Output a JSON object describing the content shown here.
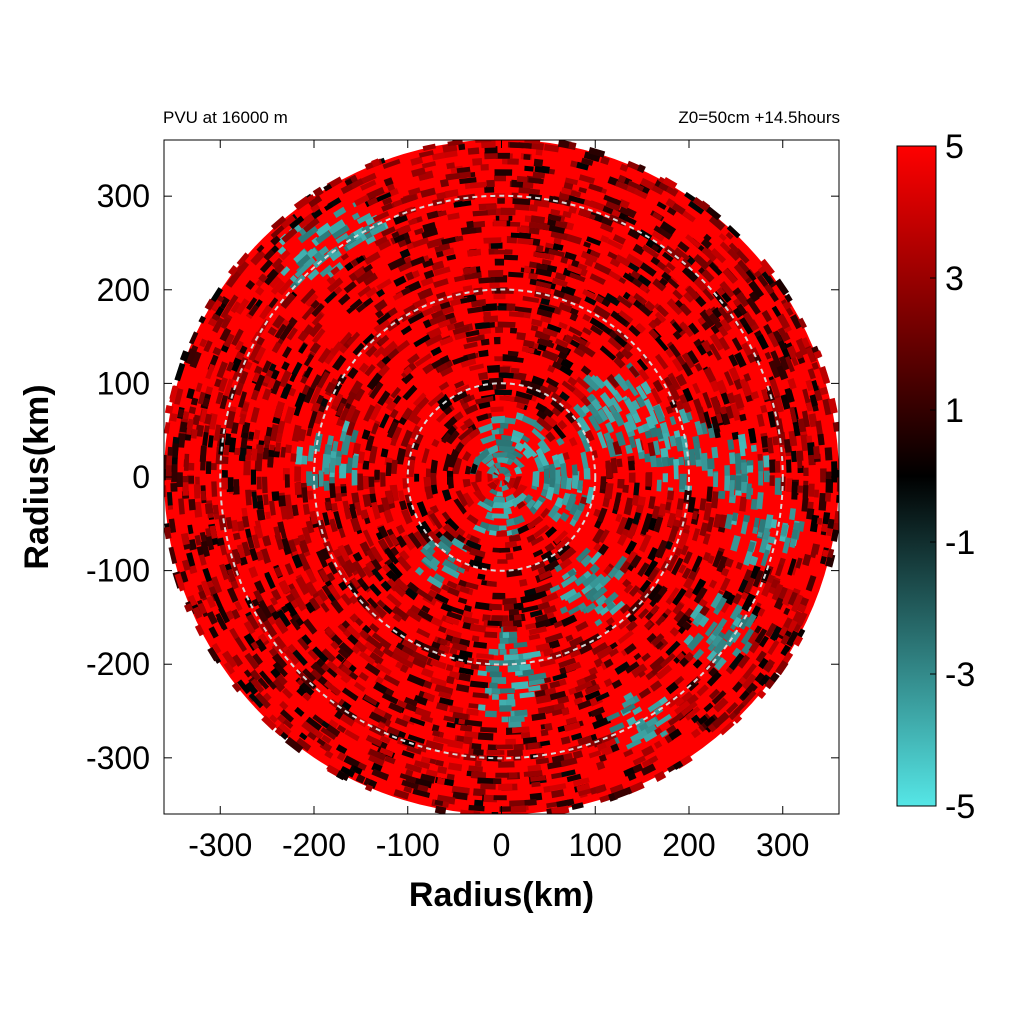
{
  "chart_data": {
    "type": "heatmap",
    "title_left": "PVU at 16000 m",
    "title_right": "Z0=50cm  +14.5hours",
    "xlabel": "Radius(km)",
    "ylabel": "Radius(km)",
    "xlim": [
      -360,
      360
    ],
    "ylim": [
      -360,
      360
    ],
    "x_ticks": [
      -300,
      -200,
      -100,
      0,
      100,
      200,
      300
    ],
    "y_ticks": [
      300,
      200,
      100,
      0,
      -100,
      -200,
      -300
    ],
    "x_tick_labels": [
      "-300",
      "-200",
      "-100",
      "0",
      "100",
      "200",
      "300"
    ],
    "y_tick_labels": [
      "300",
      "200",
      "100",
      "0",
      "-100",
      "-200",
      "-300"
    ],
    "domain_radius_km": 360,
    "range_rings_km": [
      100,
      200,
      300
    ],
    "colorbar": {
      "range": [
        -5,
        5
      ],
      "tick_values": [
        5,
        3,
        1,
        -1,
        -3,
        -5
      ],
      "tick_labels": [
        "5",
        "3",
        "1",
        "-1",
        "-3",
        "-5"
      ],
      "colors": {
        "high": "#ff0000",
        "mid": "#000000",
        "low": "#55e6e6"
      }
    },
    "field_description_values": {
      "dominant_value": 5,
      "negative_patch_value": -4
    },
    "negative_regions": [
      {
        "x": 10,
        "y": 30,
        "r": 40
      },
      {
        "x": 60,
        "y": -10,
        "r": 45
      },
      {
        "x": 130,
        "y": 60,
        "r": 50
      },
      {
        "x": 190,
        "y": 20,
        "r": 45
      },
      {
        "x": 280,
        "y": -60,
        "r": 45
      },
      {
        "x": 250,
        "y": 0,
        "r": 35
      },
      {
        "x": -180,
        "y": 30,
        "r": 35
      },
      {
        "x": -200,
        "y": 240,
        "r": 35
      },
      {
        "x": -150,
        "y": 270,
        "r": 30
      },
      {
        "x": 10,
        "y": -200,
        "r": 40
      },
      {
        "x": 90,
        "y": -120,
        "r": 40
      },
      {
        "x": -70,
        "y": -90,
        "r": 30
      },
      {
        "x": 140,
        "y": -260,
        "r": 35
      },
      {
        "x": 230,
        "y": -170,
        "r": 35
      },
      {
        "x": 0,
        "y": -240,
        "r": 30
      },
      {
        "x": -10,
        "y": -40,
        "r": 30
      }
    ]
  }
}
